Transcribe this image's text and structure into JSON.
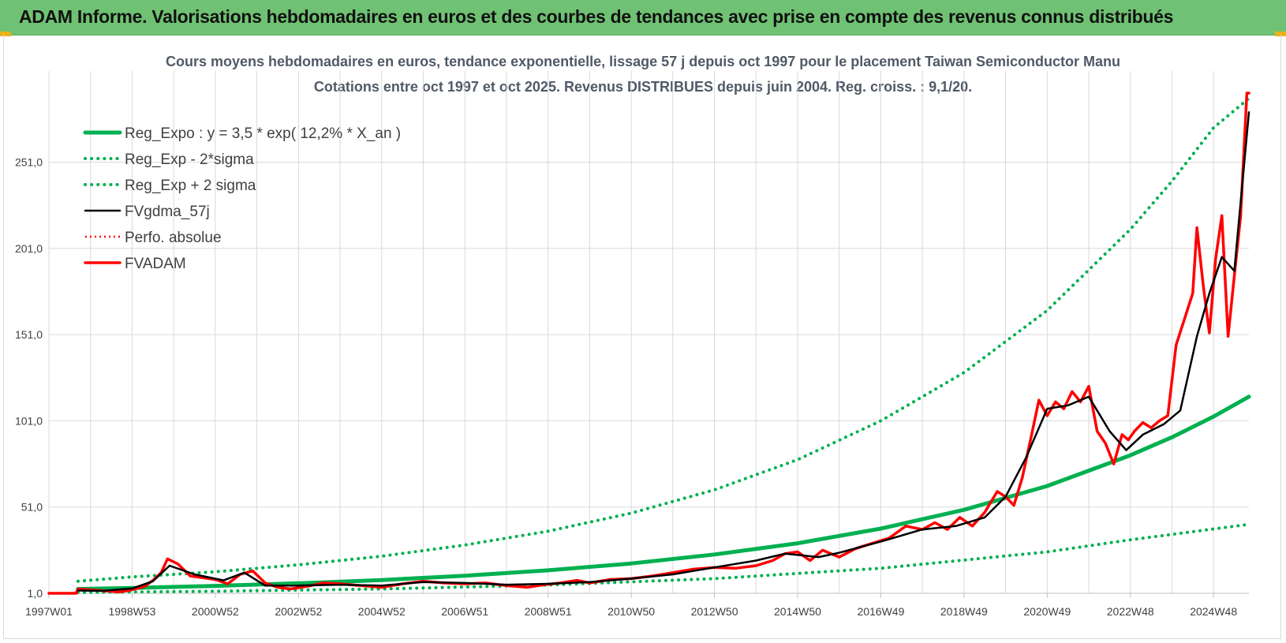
{
  "banner": {
    "title": "ADAM Informe. Valorisations hebdomadaires en euros et des courbes de tendances avec prise en compte des revenus connus distribués"
  },
  "colors": {
    "banner": "#6fc273",
    "trend": "#00b050",
    "smooth": "#000000",
    "price": "#ff0000",
    "grid": "#d9d9d9"
  },
  "chart_data": {
    "type": "line",
    "title": "Cours moyens hebdomadaires en euros, tendance exponentielle, lissage 57 j depuis oct 1997 pour le placement Taiwan Semiconductor Manu",
    "subtitle": "Cotations entre oct 1997 et oct 2025. Revenus DISTRIBUES depuis juin 2004. Reg. croiss. : 9,1/20.",
    "xlabel": "",
    "ylabel": "",
    "xlim": [
      1997.0,
      2025.85
    ],
    "ylim": [
      1,
      281
    ],
    "grid": true,
    "legend_position": "top-left",
    "y_ticks": [
      {
        "value": 1,
        "label": "1,0"
      },
      {
        "value": 51,
        "label": "51,0"
      },
      {
        "value": 101,
        "label": "101,0"
      },
      {
        "value": 151,
        "label": "151,0"
      },
      {
        "value": 201,
        "label": "201,0"
      },
      {
        "value": 251,
        "label": "251,0"
      }
    ],
    "x_ticks": [
      {
        "value": 1997.0,
        "label": "1997W01"
      },
      {
        "value": 1999.0,
        "label": "1998W53"
      },
      {
        "value": 2001.0,
        "label": "2000W52"
      },
      {
        "value": 2003.0,
        "label": "2002W52"
      },
      {
        "value": 2005.0,
        "label": "2004W52"
      },
      {
        "value": 2007.0,
        "label": "2006W51"
      },
      {
        "value": 2009.0,
        "label": "2008W51"
      },
      {
        "value": 2011.0,
        "label": "2010W50"
      },
      {
        "value": 2013.0,
        "label": "2012W50"
      },
      {
        "value": 2015.0,
        "label": "2014W50"
      },
      {
        "value": 2017.0,
        "label": "2016W49"
      },
      {
        "value": 2019.0,
        "label": "2018W49"
      },
      {
        "value": 2021.0,
        "label": "2020W49"
      },
      {
        "value": 2023.0,
        "label": "2022W48"
      },
      {
        "value": 2025.0,
        "label": "2024W48"
      }
    ],
    "series": [
      {
        "name": "Reg_Expo : y = 3,5 * exp( 12,2% *  X_an )",
        "style": "trend-solid",
        "color": "#00b050",
        "x": [
          1997.7,
          1999,
          2001,
          2003,
          2005,
          2007,
          2009,
          2011,
          2013,
          2015,
          2017,
          2019,
          2021,
          2023,
          2024,
          2025,
          2025.85
        ],
        "y": [
          3.5,
          4.1,
          5.3,
          6.8,
          8.7,
          11.2,
          14.3,
          18.3,
          23.5,
          30.0,
          38.5,
          49.4,
          63.2,
          81.0,
          91.5,
          103.5,
          115.0
        ]
      },
      {
        "name": "Reg_Exp - 2*sigma",
        "style": "trend-dotted",
        "color": "#00b050",
        "x": [
          1997.7,
          2001,
          2005,
          2009,
          2013,
          2017,
          2021,
          2023,
          2025.85
        ],
        "y": [
          1.5,
          2.2,
          3.5,
          5.8,
          9.5,
          15.5,
          25.0,
          32.0,
          41.0
        ]
      },
      {
        "name": "Reg_Exp + 2 sigma",
        "style": "trend-dotted",
        "color": "#00b050",
        "x": [
          1997.7,
          1999,
          2001,
          2003,
          2005,
          2007,
          2009,
          2011,
          2013,
          2015,
          2017,
          2019,
          2021,
          2023,
          2024,
          2025,
          2025.85
        ],
        "y": [
          8.0,
          10.5,
          13.5,
          17.5,
          22.5,
          29.0,
          37.0,
          47.5,
          61.0,
          78.5,
          101.0,
          129.0,
          165.0,
          212.0,
          240.0,
          271.0,
          288.0
        ]
      },
      {
        "name": "FVgdma_57j",
        "style": "smooth",
        "color": "#000000",
        "x": [
          1997.7,
          1998.3,
          1999.0,
          1999.5,
          1999.9,
          2000.5,
          2001.2,
          2001.7,
          2002.2,
          2003.0,
          2004.0,
          2005.0,
          2006.0,
          2007.0,
          2008.0,
          2009.0,
          2010.0,
          2011.0,
          2012.0,
          2013.0,
          2014.0,
          2014.7,
          2015.5,
          2016.0,
          2017.0,
          2018.0,
          2018.8,
          2019.5,
          2020.0,
          2020.5,
          2021.0,
          2021.5,
          2022.0,
          2022.5,
          2022.9,
          2023.3,
          2023.8,
          2024.2,
          2024.6,
          2024.9,
          2025.2,
          2025.5,
          2025.85
        ],
        "y": [
          2.6,
          2.4,
          3.8,
          8.0,
          17.0,
          12.0,
          8.5,
          13.0,
          5.5,
          5.5,
          6.0,
          5.5,
          7.5,
          7.0,
          6.0,
          6.5,
          7.5,
          9.5,
          12.0,
          16.0,
          20.0,
          24.0,
          22.0,
          24.5,
          31.0,
          38.0,
          40.0,
          45.0,
          57.0,
          80.0,
          108.0,
          110.0,
          115.0,
          95.0,
          84.0,
          93.0,
          99.0,
          107.0,
          150.0,
          175.0,
          196.0,
          188.0,
          280.0
        ]
      },
      {
        "name": "Perfo. absolue",
        "style": "red-dotted",
        "color": "#ff0000",
        "x": [
          1997.0,
          1997.7
        ],
        "y": [
          1,
          1
        ]
      },
      {
        "name": "FVADAM",
        "style": "price",
        "color": "#ff0000",
        "x": [
          1997.0,
          1997.65,
          1997.7,
          1998.0,
          1998.3,
          1998.7,
          1999.0,
          1999.3,
          1999.5,
          1999.7,
          1999.85,
          2000.1,
          2000.4,
          2000.7,
          2001.0,
          2001.3,
          2001.6,
          2001.9,
          2002.2,
          2002.5,
          2002.8,
          2003.2,
          2003.6,
          2004.0,
          2004.5,
          2005.0,
          2005.5,
          2006.0,
          2006.5,
          2007.0,
          2007.5,
          2008.0,
          2008.5,
          2008.9,
          2009.3,
          2009.7,
          2010.0,
          2010.5,
          2011.0,
          2011.5,
          2012.0,
          2012.5,
          2013.0,
          2013.5,
          2014.0,
          2014.4,
          2014.7,
          2015.0,
          2015.3,
          2015.6,
          2016.0,
          2016.4,
          2016.8,
          2017.2,
          2017.6,
          2018.0,
          2018.3,
          2018.6,
          2018.9,
          2019.2,
          2019.5,
          2019.8,
          2020.0,
          2020.2,
          2020.4,
          2020.6,
          2020.8,
          2021.0,
          2021.2,
          2021.4,
          2021.6,
          2021.8,
          2022.0,
          2022.2,
          2022.4,
          2022.6,
          2022.8,
          2022.95,
          2023.1,
          2023.3,
          2023.5,
          2023.7,
          2023.9,
          2024.1,
          2024.3,
          2024.5,
          2024.6,
          2024.75,
          2024.9,
          2025.05,
          2025.2,
          2025.35,
          2025.5,
          2025.65,
          2025.8,
          2025.85
        ],
        "y": [
          1,
          1,
          3.5,
          3.0,
          2.5,
          1.8,
          3.0,
          5.0,
          8.5,
          13.0,
          21.0,
          18.0,
          11.0,
          10.0,
          9.0,
          6.5,
          12.0,
          14.0,
          7.0,
          4.5,
          3.5,
          5.0,
          7.0,
          6.5,
          5.5,
          4.5,
          6.5,
          8.0,
          7.0,
          6.5,
          7.0,
          5.5,
          4.5,
          6.0,
          7.0,
          8.5,
          7.0,
          9.0,
          9.5,
          11.0,
          13.0,
          15.0,
          16.0,
          15.5,
          17.0,
          20.0,
          24.0,
          25.0,
          20.0,
          26.0,
          22.0,
          27.0,
          30.0,
          33.0,
          40.0,
          38.0,
          42.0,
          38.0,
          45.0,
          40.0,
          48.0,
          60.0,
          57.0,
          52.0,
          68.0,
          90.0,
          113.0,
          104.0,
          112.0,
          108.0,
          118.0,
          112.0,
          121.0,
          95.0,
          88.0,
          76.0,
          93.0,
          90.0,
          95.0,
          100.0,
          97.0,
          101.0,
          104.0,
          145.0,
          160.0,
          175.0,
          213.0,
          180.0,
          152.0,
          195.0,
          220.0,
          150.0,
          185.0,
          220.0,
          295.0,
          300.0
        ]
      }
    ]
  }
}
